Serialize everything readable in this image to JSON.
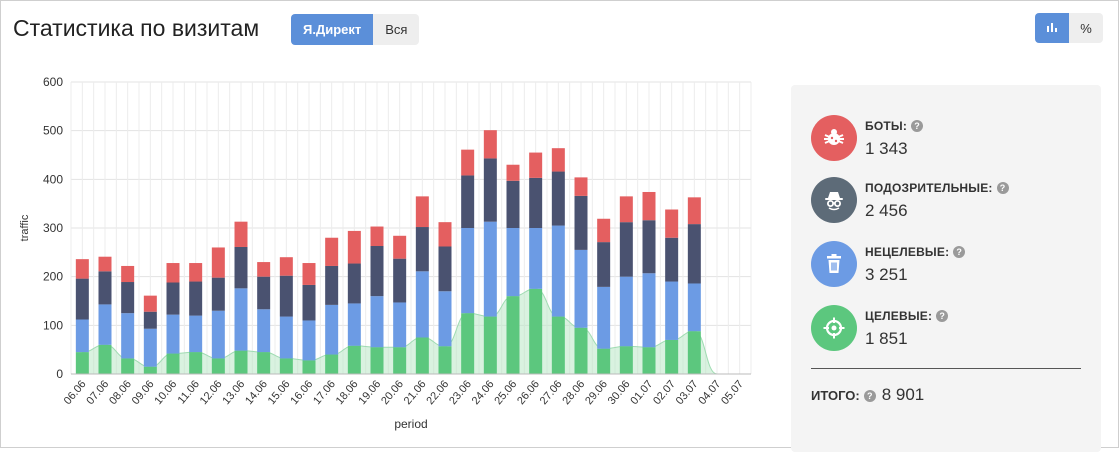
{
  "header": {
    "title": "Статистика по визитам",
    "filters": [
      "Я.Директ",
      "Вся"
    ],
    "active_filter": "Я.Директ"
  },
  "view_toggle": {
    "chart_icon": "bar-chart-icon",
    "percent_label": "%",
    "active": "chart"
  },
  "chart_data": {
    "type": "bar",
    "stacked": true,
    "xlabel": "period",
    "ylabel": "traffic",
    "ylim": [
      0,
      600
    ],
    "yticks": [
      0,
      100,
      200,
      300,
      400,
      500,
      600
    ],
    "grid": true,
    "categories": [
      "06.06",
      "07.06",
      "08.06",
      "09.06",
      "10.06",
      "11.06",
      "12.06",
      "13.06",
      "14.06",
      "15.06",
      "16.06",
      "17.06",
      "18.06",
      "19.06",
      "20.06",
      "21.06",
      "22.06",
      "23.06",
      "24.06",
      "25.06",
      "26.06",
      "27.06",
      "28.06",
      "29.06",
      "30.06",
      "01.07",
      "02.07",
      "03.07",
      "04.07",
      "05.07"
    ],
    "series": [
      {
        "key": "targeted",
        "color": "#5cc77e",
        "values": [
          45,
          60,
          32,
          15,
          42,
          45,
          32,
          48,
          45,
          32,
          28,
          40,
          58,
          55,
          55,
          75,
          57,
          125,
          118,
          160,
          175,
          118,
          95,
          52,
          57,
          55,
          70,
          88,
          0,
          0
        ]
      },
      {
        "key": "nontargeted",
        "color": "#6c9be4",
        "values": [
          67,
          83,
          93,
          78,
          80,
          75,
          98,
          128,
          88,
          86,
          82,
          102,
          87,
          105,
          92,
          136,
          113,
          175,
          195,
          140,
          125,
          187,
          160,
          127,
          143,
          152,
          120,
          98,
          0,
          0
        ]
      },
      {
        "key": "suspicious",
        "color": "#4a5270",
        "values": [
          84,
          68,
          64,
          35,
          66,
          70,
          68,
          85,
          67,
          84,
          73,
          80,
          82,
          103,
          90,
          91,
          92,
          108,
          130,
          97,
          103,
          111,
          111,
          92,
          112,
          109,
          90,
          122,
          0,
          0
        ]
      },
      {
        "key": "bots",
        "color": "#e45f60",
        "values": [
          40,
          30,
          33,
          33,
          40,
          38,
          62,
          52,
          30,
          38,
          45,
          58,
          67,
          40,
          47,
          63,
          50,
          53,
          58,
          33,
          52,
          48,
          38,
          48,
          53,
          58,
          58,
          55,
          0,
          0
        ]
      }
    ],
    "area": {
      "key": "targeted-trend",
      "color": "#b9e8c6",
      "values": [
        45,
        60,
        32,
        15,
        42,
        45,
        32,
        48,
        45,
        32,
        28,
        40,
        58,
        55,
        55,
        75,
        57,
        125,
        118,
        160,
        175,
        118,
        95,
        52,
        57,
        55,
        70,
        88,
        0,
        0
      ]
    }
  },
  "stats": [
    {
      "key": "bots",
      "label": "БОТЫ:",
      "value": "1 343",
      "color": "#e45f60",
      "icon": "bug-icon"
    },
    {
      "key": "suspicious",
      "label": "ПОДОЗРИТЕЛЬНЫЕ:",
      "value": "2 456",
      "color": "#5d6b78",
      "icon": "spy-icon"
    },
    {
      "key": "nontargeted",
      "label": "НЕЦЕЛЕВЫЕ:",
      "value": "3 251",
      "color": "#6c9be4",
      "icon": "trash-icon"
    },
    {
      "key": "targeted",
      "label": "ЦЕЛЕВЫЕ:",
      "value": "1 851",
      "color": "#5cc77e",
      "icon": "target-icon"
    }
  ],
  "total": {
    "label": "ИТОГО:",
    "value": "8 901"
  },
  "help_glyph": "?"
}
